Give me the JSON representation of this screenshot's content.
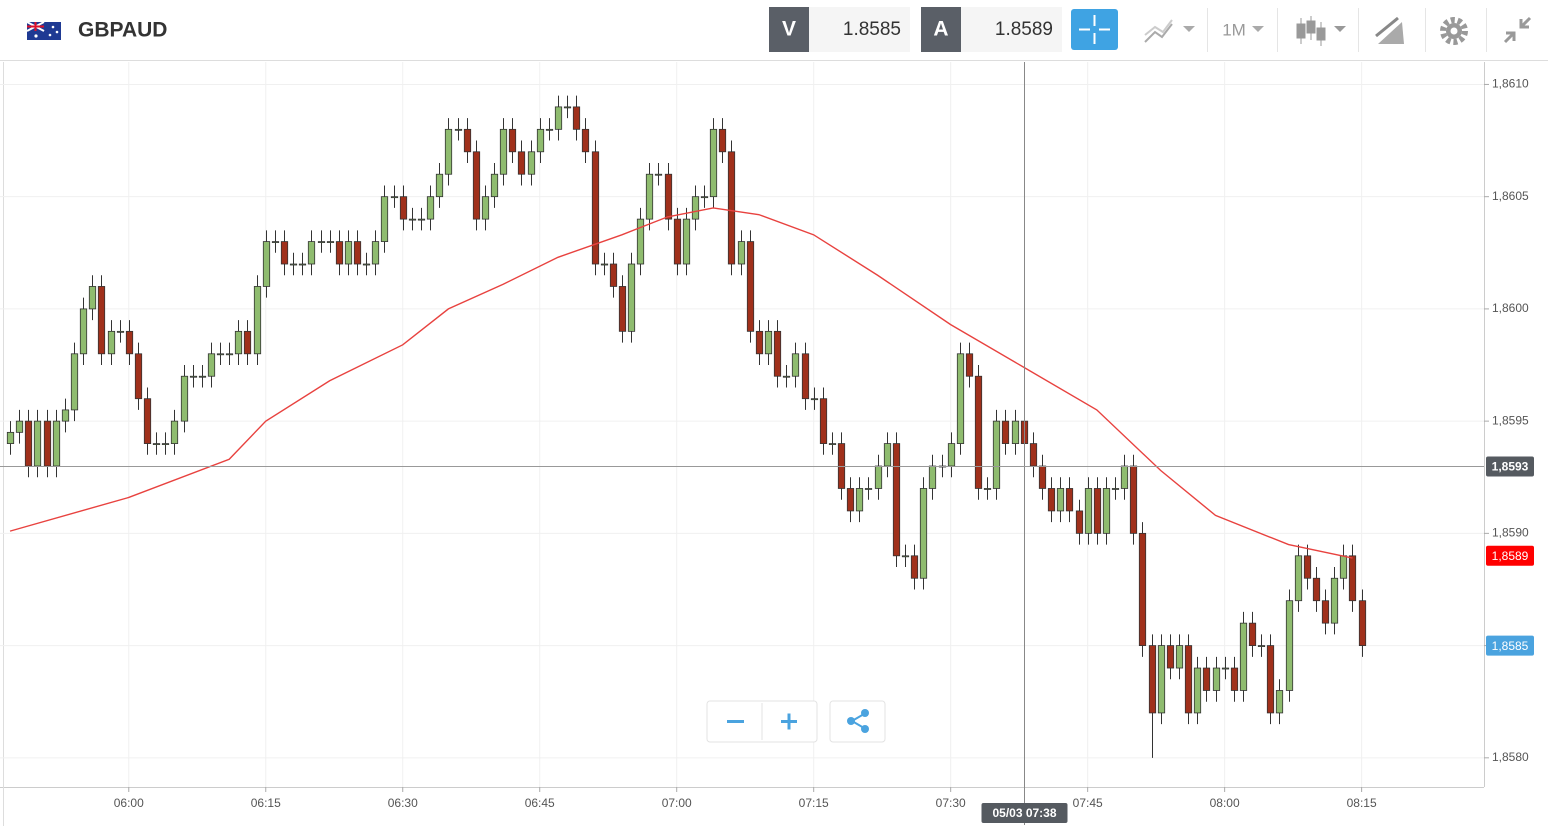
{
  "header": {
    "symbol": "GBPAUD",
    "bid_letter": "V",
    "bid": 1.8585,
    "ask_letter": "A",
    "ask": 1.8589,
    "timeframe": "1M"
  },
  "chart_data": {
    "type": "candlestick",
    "up_color": "#8fbc6f",
    "down_color": "#a0301b",
    "grid": true,
    "xlim": [
      -1.1,
      161.4
    ],
    "ylim": [
      1.85787,
      1.8611
    ],
    "xticks": [
      {
        "value": 13,
        "label": "06:00"
      },
      {
        "value": 28,
        "label": "06:15"
      },
      {
        "value": 43,
        "label": "06:30"
      },
      {
        "value": 58,
        "label": "06:45"
      },
      {
        "value": 73,
        "label": "07:00"
      },
      {
        "value": 88,
        "label": "07:15"
      },
      {
        "value": 103,
        "label": "07:30"
      },
      {
        "value": 118,
        "label": "07:45"
      },
      {
        "value": 133,
        "label": "08:00"
      },
      {
        "value": 148,
        "label": "08:15"
      }
    ],
    "yticks": [
      {
        "value": 1.861,
        "label": "1,8610"
      },
      {
        "value": 1.8605,
        "label": "1,8605"
      },
      {
        "value": 1.86,
        "label": "1,8600"
      },
      {
        "value": 1.8595,
        "label": "1,8595"
      },
      {
        "value": 1.859,
        "label": "1,8590"
      },
      {
        "value": 1.8585,
        "label": "1,8585"
      },
      {
        "value": 1.858,
        "label": "1,8580"
      }
    ],
    "open": [
      1.8594,
      1.85945,
      1.8595,
      1.8593,
      1.8595,
      1.8593,
      1.8595,
      1.85955,
      1.8598,
      1.86,
      1.8601,
      1.8598,
      1.8599,
      1.8599,
      1.8598,
      1.8596,
      1.8594,
      1.8594,
      1.8594,
      1.8595,
      1.8597,
      1.8597,
      1.8597,
      1.8598,
      1.8598,
      1.8598,
      1.8599,
      1.8598,
      1.8601,
      1.8603,
      1.8603,
      1.8602,
      1.8602,
      1.8602,
      1.8603,
      1.8603,
      1.8603,
      1.8602,
      1.8603,
      1.8602,
      1.8602,
      1.8603,
      1.8605,
      1.8605,
      1.8604,
      1.8604,
      1.8604,
      1.8605,
      1.8606,
      1.8608,
      1.8608,
      1.8607,
      1.8604,
      1.8605,
      1.8606,
      1.8608,
      1.8607,
      1.8606,
      1.8607,
      1.8608,
      1.8608,
      1.8609,
      1.8609,
      1.8608,
      1.8607,
      1.8602,
      1.8602,
      1.8601,
      1.8599,
      1.8602,
      1.8604,
      1.8606,
      1.8606,
      1.8604,
      1.8602,
      1.8604,
      1.8605,
      1.8605,
      1.8608,
      1.8607,
      1.8602,
      1.8603,
      1.8599,
      1.8598,
      1.8599,
      1.8597,
      1.8597,
      1.8598,
      1.8596,
      1.8596,
      1.8594,
      1.8594,
      1.8592,
      1.8591,
      1.8592,
      1.8592,
      1.8593,
      1.8594,
      1.8589,
      1.8589,
      1.8588,
      1.8592,
      1.8593,
      1.8593,
      1.8594,
      1.8598,
      1.8597,
      1.8592,
      1.8592,
      1.8595,
      1.8594,
      1.8595,
      1.8594,
      1.8593,
      1.8592,
      1.8591,
      1.8592,
      1.8591,
      1.859,
      1.8592,
      1.859,
      1.8592,
      1.8592,
      1.8593,
      1.859,
      1.8585,
      1.8582,
      1.8585,
      1.8584,
      1.8585,
      1.8582,
      1.8584,
      1.8583,
      1.8584,
      1.8584,
      1.8583,
      1.8586,
      1.8585,
      1.8585,
      1.8582,
      1.8583,
      1.8587,
      1.8589,
      1.8588,
      1.8587,
      1.8586,
      1.8588,
      1.8589,
      1.8587
    ],
    "high": [
      1.8595,
      1.85955,
      1.85955,
      1.85955,
      1.85955,
      1.85955,
      1.8596,
      1.85985,
      1.86005,
      1.86015,
      1.86015,
      1.85995,
      1.85995,
      1.85995,
      1.85985,
      1.85965,
      1.85945,
      1.85945,
      1.85955,
      1.85975,
      1.85975,
      1.85975,
      1.85985,
      1.85985,
      1.85985,
      1.85995,
      1.85995,
      1.86015,
      1.86035,
      1.86035,
      1.86035,
      1.86025,
      1.86025,
      1.86035,
      1.86035,
      1.86035,
      1.86035,
      1.86035,
      1.86035,
      1.86025,
      1.86035,
      1.86055,
      1.86055,
      1.86055,
      1.86045,
      1.86045,
      1.86055,
      1.86065,
      1.86085,
      1.86085,
      1.86085,
      1.86075,
      1.86055,
      1.86065,
      1.86085,
      1.86085,
      1.86075,
      1.86075,
      1.86085,
      1.86085,
      1.86095,
      1.86095,
      1.86095,
      1.86085,
      1.86075,
      1.86025,
      1.86025,
      1.86015,
      1.86025,
      1.86045,
      1.86065,
      1.86065,
      1.86065,
      1.86045,
      1.86045,
      1.86055,
      1.86055,
      1.86085,
      1.86085,
      1.86075,
      1.86035,
      1.86035,
      1.85995,
      1.85995,
      1.85995,
      1.85975,
      1.85985,
      1.85985,
      1.85965,
      1.85965,
      1.85945,
      1.85945,
      1.85925,
      1.85925,
      1.85925,
      1.85935,
      1.85945,
      1.85945,
      1.85895,
      1.85895,
      1.85925,
      1.85935,
      1.85935,
      1.85945,
      1.85985,
      1.85985,
      1.85975,
      1.85925,
      1.85955,
      1.85955,
      1.85955,
      1.85955,
      1.85945,
      1.85935,
      1.85925,
      1.85925,
      1.85925,
      1.85915,
      1.85925,
      1.85925,
      1.85925,
      1.85925,
      1.85935,
      1.85935,
      1.85905,
      1.85855,
      1.85855,
      1.85855,
      1.85855,
      1.85855,
      1.85845,
      1.85845,
      1.85845,
      1.85845,
      1.85845,
      1.85865,
      1.85865,
      1.85855,
      1.85855,
      1.85835,
      1.85875,
      1.85895,
      1.85895,
      1.85885,
      1.85875,
      1.85885,
      1.85895,
      1.85895,
      1.85875
    ],
    "low": [
      1.85935,
      1.8594,
      1.85925,
      1.85925,
      1.85925,
      1.85925,
      1.85945,
      1.8595,
      1.85975,
      1.85995,
      1.85975,
      1.85975,
      1.85985,
      1.85975,
      1.85955,
      1.85935,
      1.85935,
      1.85935,
      1.85935,
      1.85945,
      1.85965,
      1.85965,
      1.85965,
      1.85975,
      1.85975,
      1.85975,
      1.85975,
      1.85975,
      1.86005,
      1.86025,
      1.86015,
      1.86015,
      1.86015,
      1.86015,
      1.86025,
      1.86025,
      1.86015,
      1.86015,
      1.86015,
      1.86015,
      1.86015,
      1.86025,
      1.86045,
      1.86035,
      1.86035,
      1.86035,
      1.86035,
      1.86045,
      1.86055,
      1.86075,
      1.86065,
      1.86035,
      1.86035,
      1.86045,
      1.86055,
      1.86065,
      1.86055,
      1.86055,
      1.86065,
      1.86075,
      1.86075,
      1.86085,
      1.86075,
      1.86065,
      1.86015,
      1.86015,
      1.86005,
      1.85985,
      1.85985,
      1.86015,
      1.86035,
      1.86055,
      1.86035,
      1.86015,
      1.86015,
      1.86035,
      1.86045,
      1.86045,
      1.86065,
      1.86015,
      1.86015,
      1.85985,
      1.85975,
      1.85975,
      1.85965,
      1.85965,
      1.85965,
      1.85955,
      1.85955,
      1.85935,
      1.85935,
      1.85915,
      1.85905,
      1.85905,
      1.85915,
      1.85915,
      1.85925,
      1.85885,
      1.85885,
      1.85875,
      1.85875,
      1.85915,
      1.85925,
      1.85925,
      1.85935,
      1.85965,
      1.85915,
      1.85915,
      1.85915,
      1.85935,
      1.85935,
      1.85935,
      1.85925,
      1.85915,
      1.85905,
      1.85905,
      1.85905,
      1.85895,
      1.85895,
      1.85895,
      1.85895,
      1.85915,
      1.85915,
      1.85895,
      1.85845,
      1.858,
      1.85815,
      1.85835,
      1.85835,
      1.85815,
      1.85815,
      1.85825,
      1.85825,
      1.85835,
      1.85825,
      1.85825,
      1.85845,
      1.85845,
      1.85815,
      1.85815,
      1.85825,
      1.85865,
      1.85875,
      1.85865,
      1.85855,
      1.85855,
      1.85875,
      1.85865,
      1.85845
    ],
    "close": [
      1.85945,
      1.8595,
      1.8593,
      1.8595,
      1.8593,
      1.8595,
      1.85955,
      1.8598,
      1.86,
      1.8601,
      1.8598,
      1.8599,
      1.8599,
      1.8598,
      1.8596,
      1.8594,
      1.8594,
      1.8594,
      1.8595,
      1.8597,
      1.8597,
      1.8597,
      1.8598,
      1.8598,
      1.8598,
      1.8599,
      1.8598,
      1.8601,
      1.8603,
      1.8603,
      1.8602,
      1.8602,
      1.8602,
      1.8603,
      1.8603,
      1.8603,
      1.8602,
      1.8603,
      1.8602,
      1.8602,
      1.8603,
      1.8605,
      1.8605,
      1.8604,
      1.8604,
      1.8604,
      1.8605,
      1.8606,
      1.8608,
      1.8608,
      1.8607,
      1.8604,
      1.8605,
      1.8606,
      1.8608,
      1.8607,
      1.8606,
      1.8607,
      1.8608,
      1.8608,
      1.8609,
      1.8609,
      1.8608,
      1.8607,
      1.8602,
      1.8602,
      1.8601,
      1.8599,
      1.8602,
      1.8604,
      1.8606,
      1.8606,
      1.8604,
      1.8602,
      1.8604,
      1.8605,
      1.8605,
      1.8608,
      1.8607,
      1.8602,
      1.8603,
      1.8599,
      1.8598,
      1.8599,
      1.8597,
      1.8597,
      1.8598,
      1.8596,
      1.8596,
      1.8594,
      1.8594,
      1.8592,
      1.8591,
      1.8592,
      1.8592,
      1.8593,
      1.8594,
      1.8589,
      1.8589,
      1.8588,
      1.8592,
      1.8593,
      1.8593,
      1.8594,
      1.8598,
      1.8597,
      1.8592,
      1.8592,
      1.8595,
      1.8594,
      1.8595,
      1.8594,
      1.8593,
      1.8592,
      1.8591,
      1.8592,
      1.8591,
      1.859,
      1.8592,
      1.859,
      1.8592,
      1.8592,
      1.8593,
      1.859,
      1.8585,
      1.8582,
      1.8585,
      1.8584,
      1.8585,
      1.8582,
      1.8584,
      1.8583,
      1.8584,
      1.8584,
      1.8583,
      1.8586,
      1.8585,
      1.8585,
      1.8582,
      1.8583,
      1.8587,
      1.8589,
      1.8588,
      1.8587,
      1.8586,
      1.8588,
      1.8589,
      1.8587,
      1.8585
    ],
    "moving_average": {
      "color": "#e8423f",
      "x": [
        0,
        13,
        24,
        28,
        35,
        43,
        48,
        54,
        60,
        67,
        72,
        77,
        82,
        88,
        95,
        103,
        111,
        119,
        126,
        132,
        140,
        147
      ],
      "values": [
        1.85901,
        1.85916,
        1.85933,
        1.8595,
        1.85968,
        1.85984,
        1.86,
        1.86011,
        1.86023,
        1.86033,
        1.86041,
        1.86045,
        1.86042,
        1.86033,
        1.86015,
        1.85993,
        1.85974,
        1.85955,
        1.85928,
        1.85908,
        1.85895,
        1.85889
      ]
    },
    "crosshair": {
      "x": 111,
      "y": 1.8593,
      "y_label": "1,8593",
      "x_label": "05/03 07:38"
    },
    "price_markers": [
      {
        "value": 1.8589,
        "label": "1,8589",
        "color": "#ff0000"
      },
      {
        "value": 1.8585,
        "label": "1,8585",
        "color": "#4aa3df"
      }
    ]
  }
}
